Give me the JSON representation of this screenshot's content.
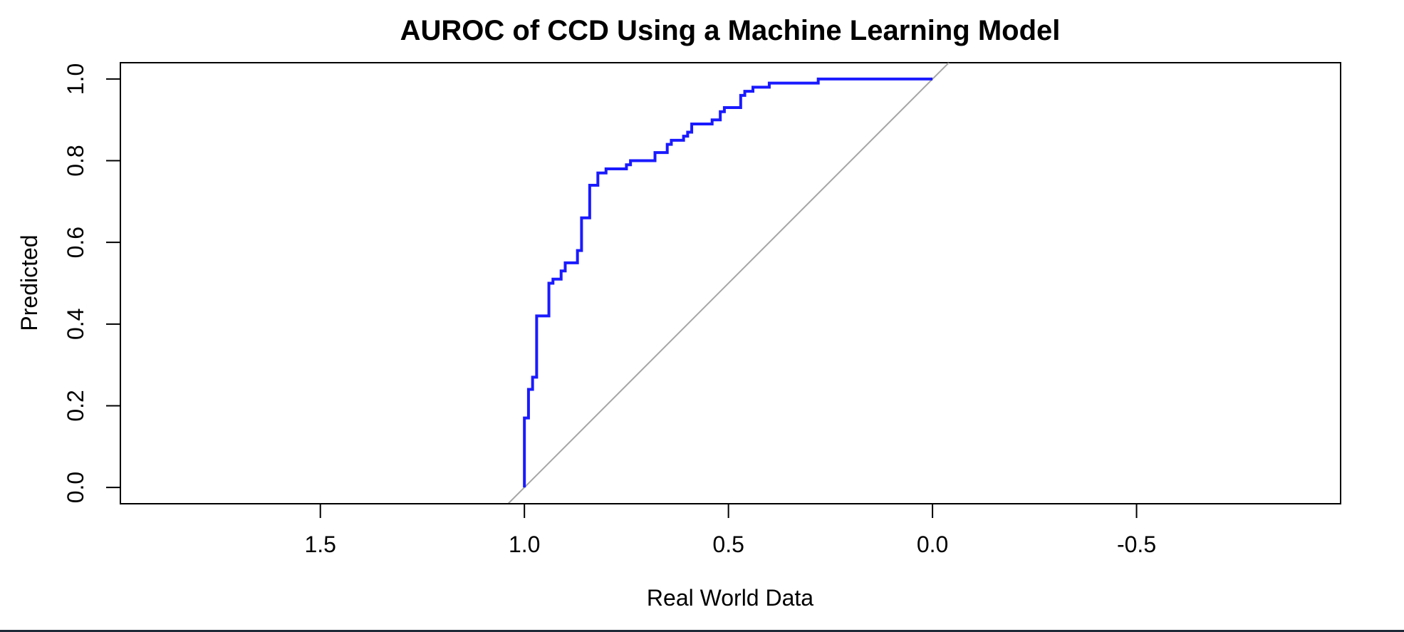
{
  "chart_data": {
    "type": "line",
    "title": "AUROC of CCD Using a Machine Learning Model",
    "xlabel": "Real World Data",
    "ylabel": "Predicted",
    "xlim": [
      1.99,
      -1.0
    ],
    "ylim": [
      -0.04,
      1.04
    ],
    "x_reversed": true,
    "xticks": [
      1.5,
      1.0,
      0.5,
      0.0,
      -0.5
    ],
    "xtick_labels": [
      "1.5",
      "1.0",
      "0.5",
      "0.0",
      "-0.5"
    ],
    "yticks": [
      0.0,
      0.2,
      0.4,
      0.6,
      0.8,
      1.0
    ],
    "ytick_labels": [
      "0.0",
      "0.2",
      "0.4",
      "0.6",
      "0.8",
      "1.0"
    ],
    "grid": false,
    "colors": {
      "roc": "#1a1aff",
      "reference": "#a6a6a6",
      "axis": "#000000"
    },
    "series": [
      {
        "x": [
          1.0,
          1.0,
          0.99,
          0.99,
          0.98,
          0.98,
          0.97,
          0.97,
          0.94,
          0.94,
          0.93,
          0.93,
          0.91,
          0.91,
          0.9,
          0.9,
          0.87,
          0.87,
          0.86,
          0.86,
          0.84,
          0.84,
          0.82,
          0.82,
          0.8,
          0.8,
          0.75,
          0.75,
          0.74,
          0.74,
          0.68,
          0.68,
          0.65,
          0.65,
          0.64,
          0.64,
          0.61,
          0.61,
          0.6,
          0.6,
          0.59,
          0.59,
          0.54,
          0.54,
          0.52,
          0.52,
          0.51,
          0.51,
          0.47,
          0.47,
          0.46,
          0.46,
          0.44,
          0.44,
          0.4,
          0.4,
          0.37,
          0.37,
          0.28,
          0.28,
          0.0
        ],
        "y": [
          0.0,
          0.17,
          0.17,
          0.24,
          0.24,
          0.27,
          0.27,
          0.42,
          0.42,
          0.5,
          0.5,
          0.51,
          0.51,
          0.53,
          0.53,
          0.55,
          0.55,
          0.58,
          0.58,
          0.66,
          0.66,
          0.74,
          0.74,
          0.77,
          0.77,
          0.78,
          0.78,
          0.79,
          0.79,
          0.8,
          0.8,
          0.82,
          0.82,
          0.84,
          0.84,
          0.85,
          0.85,
          0.86,
          0.86,
          0.87,
          0.87,
          0.89,
          0.89,
          0.9,
          0.9,
          0.92,
          0.92,
          0.93,
          0.93,
          0.96,
          0.96,
          0.97,
          0.97,
          0.98,
          0.98,
          0.99,
          0.99,
          0.99,
          0.99,
          1.0,
          1.0
        ]
      },
      {
        "x": [
          1.04,
          -0.04
        ],
        "y": [
          -0.04,
          1.04
        ]
      }
    ]
  }
}
